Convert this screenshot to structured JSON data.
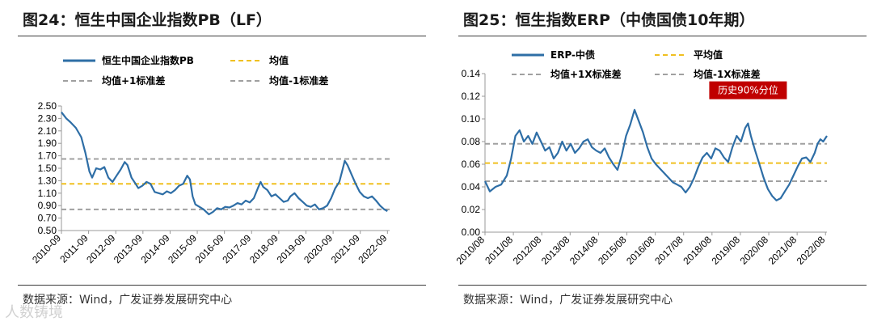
{
  "colors": {
    "series": "#2E6EA6",
    "mean": "#F0C020",
    "band": "#A0A0A0",
    "callout_bg": "#C00000",
    "callout_text": "#ffffff"
  },
  "watermark": "人数铸境",
  "panels": [
    {
      "title": "图24：恒生中国企业指数PB（LF）",
      "source": "数据来源：Wind，广发证券发展研究中心"
    },
    {
      "title": "图25：恒生指数ERP（中债国债10年期）",
      "source": "数据来源：Wind，广发证券发展研究中心"
    }
  ],
  "chart_data": [
    {
      "type": "line",
      "title": "恒生中国企业指数PB（LF）",
      "xlabel": "",
      "ylabel": "",
      "ylim": [
        0.5,
        2.5
      ],
      "yticks": [
        0.5,
        0.7,
        0.9,
        1.1,
        1.3,
        1.5,
        1.7,
        1.9,
        2.1,
        2.3,
        2.5
      ],
      "ytick_labels": [
        "0.50",
        "0.70",
        "0.90",
        "1.10",
        "1.30",
        "1.50",
        "1.70",
        "1.90",
        "2.10",
        "2.30",
        "2.50"
      ],
      "xlim": [
        2010.67,
        2022.75
      ],
      "xticks": [
        2010.67,
        2011.67,
        2012.67,
        2013.67,
        2014.67,
        2015.67,
        2016.67,
        2017.67,
        2018.67,
        2019.67,
        2020.67,
        2021.67,
        2022.67
      ],
      "xtick_labels": [
        "2010-09",
        "2011-09",
        "2012-09",
        "2013-09",
        "2014-09",
        "2015-09",
        "2016-09",
        "2017-09",
        "2018-09",
        "2019-09",
        "2020-09",
        "2021-09",
        "2022-09"
      ],
      "legend": [
        {
          "label": "恒生中国企业指数PB",
          "style": "solid"
        },
        {
          "label": "均值",
          "style": "mean"
        },
        {
          "label": "均值+1标准差",
          "style": "band"
        },
        {
          "label": "均值-1标准差",
          "style": "band"
        }
      ],
      "series": [
        {
          "name": "恒生中国企业指数PB",
          "points": [
            [
              2010.67,
              2.4
            ],
            [
              2010.85,
              2.3
            ],
            [
              2011.0,
              2.24
            ],
            [
              2011.2,
              2.15
            ],
            [
              2011.4,
              2.0
            ],
            [
              2011.55,
              1.75
            ],
            [
              2011.7,
              1.45
            ],
            [
              2011.8,
              1.35
            ],
            [
              2011.95,
              1.5
            ],
            [
              2012.1,
              1.48
            ],
            [
              2012.25,
              1.52
            ],
            [
              2012.4,
              1.35
            ],
            [
              2012.55,
              1.28
            ],
            [
              2012.7,
              1.38
            ],
            [
              2012.85,
              1.48
            ],
            [
              2013.0,
              1.6
            ],
            [
              2013.1,
              1.55
            ],
            [
              2013.25,
              1.35
            ],
            [
              2013.4,
              1.25
            ],
            [
              2013.5,
              1.18
            ],
            [
              2013.65,
              1.22
            ],
            [
              2013.8,
              1.28
            ],
            [
              2013.95,
              1.25
            ],
            [
              2014.1,
              1.12
            ],
            [
              2014.25,
              1.1
            ],
            [
              2014.4,
              1.08
            ],
            [
              2014.55,
              1.13
            ],
            [
              2014.7,
              1.1
            ],
            [
              2014.85,
              1.15
            ],
            [
              2015.0,
              1.22
            ],
            [
              2015.15,
              1.25
            ],
            [
              2015.3,
              1.38
            ],
            [
              2015.4,
              1.32
            ],
            [
              2015.5,
              1.05
            ],
            [
              2015.6,
              0.92
            ],
            [
              2015.75,
              0.88
            ],
            [
              2015.9,
              0.84
            ],
            [
              2016.0,
              0.8
            ],
            [
              2016.1,
              0.76
            ],
            [
              2016.25,
              0.8
            ],
            [
              2016.4,
              0.86
            ],
            [
              2016.55,
              0.84
            ],
            [
              2016.7,
              0.88
            ],
            [
              2016.85,
              0.87
            ],
            [
              2017.0,
              0.9
            ],
            [
              2017.15,
              0.94
            ],
            [
              2017.3,
              0.92
            ],
            [
              2017.45,
              0.98
            ],
            [
              2017.6,
              0.95
            ],
            [
              2017.75,
              1.02
            ],
            [
              2017.9,
              1.18
            ],
            [
              2018.0,
              1.28
            ],
            [
              2018.1,
              1.2
            ],
            [
              2018.25,
              1.15
            ],
            [
              2018.4,
              1.05
            ],
            [
              2018.55,
              1.08
            ],
            [
              2018.7,
              1.02
            ],
            [
              2018.85,
              0.96
            ],
            [
              2019.0,
              0.98
            ],
            [
              2019.1,
              1.05
            ],
            [
              2019.25,
              1.1
            ],
            [
              2019.4,
              1.02
            ],
            [
              2019.55,
              0.96
            ],
            [
              2019.7,
              0.9
            ],
            [
              2019.85,
              0.88
            ],
            [
              2020.0,
              0.92
            ],
            [
              2020.15,
              0.84
            ],
            [
              2020.3,
              0.86
            ],
            [
              2020.45,
              0.9
            ],
            [
              2020.6,
              1.02
            ],
            [
              2020.75,
              1.18
            ],
            [
              2020.9,
              1.28
            ],
            [
              2021.0,
              1.45
            ],
            [
              2021.1,
              1.62
            ],
            [
              2021.2,
              1.55
            ],
            [
              2021.35,
              1.4
            ],
            [
              2021.5,
              1.25
            ],
            [
              2021.65,
              1.12
            ],
            [
              2021.8,
              1.05
            ],
            [
              2021.95,
              1.02
            ],
            [
              2022.1,
              1.05
            ],
            [
              2022.25,
              0.98
            ],
            [
              2022.4,
              0.9
            ],
            [
              2022.55,
              0.84
            ],
            [
              2022.67,
              0.81
            ]
          ]
        },
        {
          "name": "均值",
          "constant": 1.25
        },
        {
          "name": "均值+1标准差",
          "constant": 1.65
        },
        {
          "name": "均值-1标准差",
          "constant": 0.84
        }
      ]
    },
    {
      "type": "line",
      "title": "恒生指数ERP（中债国债10年期）",
      "xlabel": "",
      "ylabel": "",
      "ylim": [
        0.0,
        0.14
      ],
      "yticks": [
        0.0,
        0.02,
        0.04,
        0.06,
        0.08,
        0.1,
        0.12,
        0.14
      ],
      "ytick_labels": [
        "0.00",
        "0.02",
        "0.04",
        "0.06",
        "0.08",
        "0.10",
        "0.12",
        "0.14"
      ],
      "xlim": [
        2010.58,
        2022.63
      ],
      "xticks": [
        2010.58,
        2011.58,
        2012.58,
        2013.58,
        2014.58,
        2015.58,
        2016.58,
        2017.58,
        2018.58,
        2019.58,
        2020.58,
        2021.58,
        2022.58
      ],
      "xtick_labels": [
        "2010/08",
        "2011/08",
        "2012/08",
        "2013/08",
        "2014/08",
        "2015/08",
        "2016/08",
        "2017/08",
        "2018/08",
        "2019/08",
        "2020/08",
        "2021/08",
        "2022/08"
      ],
      "annotation": "历史90%分位",
      "legend": [
        {
          "label": "ERP-中债",
          "style": "solid"
        },
        {
          "label": "平均值",
          "style": "mean"
        },
        {
          "label": "均值+1X标准差",
          "style": "band"
        },
        {
          "label": "均值-1X标准差",
          "style": "band"
        }
      ],
      "series": [
        {
          "name": "ERP-中债",
          "points": [
            [
              2010.58,
              0.045
            ],
            [
              2010.75,
              0.036
            ],
            [
              2010.95,
              0.04
            ],
            [
              2011.15,
              0.042
            ],
            [
              2011.35,
              0.05
            ],
            [
              2011.5,
              0.065
            ],
            [
              2011.65,
              0.085
            ],
            [
              2011.8,
              0.09
            ],
            [
              2011.95,
              0.08
            ],
            [
              2012.1,
              0.085
            ],
            [
              2012.25,
              0.078
            ],
            [
              2012.4,
              0.088
            ],
            [
              2012.55,
              0.08
            ],
            [
              2012.7,
              0.072
            ],
            [
              2012.85,
              0.075
            ],
            [
              2013.0,
              0.065
            ],
            [
              2013.15,
              0.07
            ],
            [
              2013.3,
              0.08
            ],
            [
              2013.45,
              0.072
            ],
            [
              2013.6,
              0.078
            ],
            [
              2013.75,
              0.07
            ],
            [
              2013.9,
              0.074
            ],
            [
              2014.05,
              0.08
            ],
            [
              2014.2,
              0.082
            ],
            [
              2014.35,
              0.075
            ],
            [
              2014.5,
              0.072
            ],
            [
              2014.65,
              0.07
            ],
            [
              2014.8,
              0.074
            ],
            [
              2014.95,
              0.066
            ],
            [
              2015.1,
              0.06
            ],
            [
              2015.25,
              0.055
            ],
            [
              2015.4,
              0.068
            ],
            [
              2015.55,
              0.085
            ],
            [
              2015.7,
              0.095
            ],
            [
              2015.85,
              0.108
            ],
            [
              2016.0,
              0.098
            ],
            [
              2016.15,
              0.088
            ],
            [
              2016.3,
              0.075
            ],
            [
              2016.45,
              0.065
            ],
            [
              2016.6,
              0.06
            ],
            [
              2016.75,
              0.056
            ],
            [
              2016.9,
              0.052
            ],
            [
              2017.05,
              0.048
            ],
            [
              2017.2,
              0.044
            ],
            [
              2017.35,
              0.042
            ],
            [
              2017.5,
              0.04
            ],
            [
              2017.65,
              0.035
            ],
            [
              2017.8,
              0.04
            ],
            [
              2017.95,
              0.048
            ],
            [
              2018.1,
              0.058
            ],
            [
              2018.25,
              0.066
            ],
            [
              2018.4,
              0.07
            ],
            [
              2018.55,
              0.065
            ],
            [
              2018.7,
              0.074
            ],
            [
              2018.85,
              0.072
            ],
            [
              2019.0,
              0.066
            ],
            [
              2019.15,
              0.062
            ],
            [
              2019.3,
              0.075
            ],
            [
              2019.45,
              0.085
            ],
            [
              2019.6,
              0.08
            ],
            [
              2019.75,
              0.092
            ],
            [
              2019.85,
              0.096
            ],
            [
              2019.95,
              0.085
            ],
            [
              2020.1,
              0.072
            ],
            [
              2020.25,
              0.06
            ],
            [
              2020.4,
              0.048
            ],
            [
              2020.55,
              0.038
            ],
            [
              2020.7,
              0.032
            ],
            [
              2020.85,
              0.028
            ],
            [
              2021.0,
              0.03
            ],
            [
              2021.15,
              0.036
            ],
            [
              2021.3,
              0.042
            ],
            [
              2021.45,
              0.05
            ],
            [
              2021.6,
              0.058
            ],
            [
              2021.75,
              0.065
            ],
            [
              2021.9,
              0.066
            ],
            [
              2022.05,
              0.062
            ],
            [
              2022.2,
              0.07
            ],
            [
              2022.3,
              0.078
            ],
            [
              2022.4,
              0.082
            ],
            [
              2022.5,
              0.08
            ],
            [
              2022.63,
              0.085
            ]
          ]
        },
        {
          "name": "平均值",
          "constant": 0.061
        },
        {
          "name": "均值+1X标准差",
          "constant": 0.078
        },
        {
          "name": "均值-1X标准差",
          "constant": 0.045
        }
      ]
    }
  ]
}
